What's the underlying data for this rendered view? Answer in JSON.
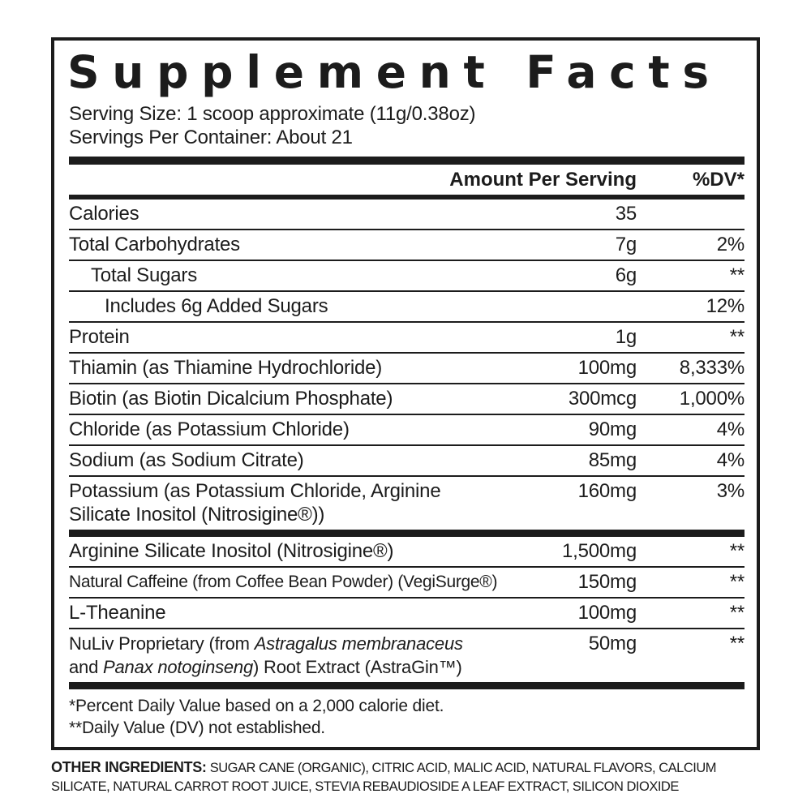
{
  "panel": {
    "title": "Supplement Facts",
    "serving_size": "Serving Size: 1 scoop approximate (11g/0.38oz)",
    "servings_per_container": "Servings Per Container: About 21",
    "header": {
      "amount": "Amount Per Serving",
      "dv": "%DV*"
    },
    "rows": [
      {
        "name": "Calories",
        "amount": "35",
        "dv": ""
      },
      {
        "name": "Total Carbohydrates",
        "amount": "7g",
        "dv": "2%"
      },
      {
        "name": "Total Sugars",
        "amount": "6g",
        "dv": "**"
      },
      {
        "name": "Includes 6g Added Sugars",
        "amount": "",
        "dv": "12%"
      },
      {
        "name": "Protein",
        "amount": "1g",
        "dv": "**"
      },
      {
        "name": "Thiamin (as Thiamine Hydrochloride)",
        "amount": "100mg",
        "dv": "8,333%"
      },
      {
        "name": "Biotin (as Biotin Dicalcium Phosphate)",
        "amount": "300mcg",
        "dv": "1,000%"
      },
      {
        "name": "Chloride (as Potassium Chloride)",
        "amount": "90mg",
        "dv": "4%"
      },
      {
        "name": "Sodium (as Sodium Citrate)",
        "amount": "85mg",
        "dv": "4%"
      },
      {
        "name": "Potassium (as Potassium Chloride, Arginine Silicate Inositol (Nitrosigine®))",
        "amount": "160mg",
        "dv": "3%"
      },
      {
        "name": "Arginine Silicate Inositol (Nitrosigine®)",
        "amount": "1,500mg",
        "dv": "**"
      },
      {
        "name": "Natural Caffeine (from Coffee Bean Powder) (VegiSurge®)",
        "amount": "150mg",
        "dv": "**"
      },
      {
        "name": "L-Theanine",
        "amount": "100mg",
        "dv": "**"
      },
      {
        "seg_pre": "NuLiv Proprietary (from ",
        "seg_italic1": "Astragalus membranaceus",
        "seg_mid": "and ",
        "seg_italic2": "Panax notoginseng",
        "seg_post": ") Root Extract (AstraGin™)",
        "amount": "50mg",
        "dv": "**"
      }
    ],
    "footnotes": {
      "dv_basis": "*Percent Daily Value based on a 2,000 calorie diet.",
      "dv_not_established": "**Daily Value (DV) not established."
    }
  },
  "other_ingredients": {
    "label": "OTHER INGREDIENTS:",
    "text": "SUGAR CANE (ORGANIC), CITRIC ACID, MALIC ACID, NATURAL FLAVORS, CALCIUM SILICATE, NATURAL CARROT ROOT JUICE, STEVIA REBAUDIOSIDE A LEAF EXTRACT, SILICON DIOXIDE"
  }
}
